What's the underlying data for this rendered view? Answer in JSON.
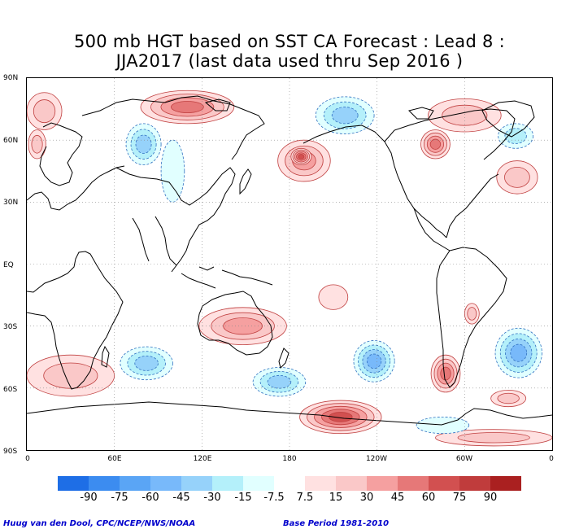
{
  "title_line1": "500 mb HGT based on SST CA Forecast : Lead 8 :",
  "title_line2": "JJA2017 (last data used thru Sep 2016 )",
  "lat_labels": [
    "90N",
    "60N",
    "30N",
    "EQ",
    "30S",
    "60S",
    "90S"
  ],
  "lon_labels": [
    "0",
    "60E",
    "120E",
    "180",
    "120W",
    "60W",
    "0"
  ],
  "colorbar": {
    "levels": [
      -90,
      -75,
      -60,
      -45,
      -30,
      -15,
      -7.5,
      7.5,
      15,
      30,
      45,
      60,
      75,
      90
    ],
    "labels": [
      "-90",
      "-75",
      "-60",
      "-45",
      "-30",
      "-15",
      "-7.5",
      "7.5",
      "15",
      "30",
      "45",
      "60",
      "75",
      "90"
    ],
    "negative_colors": [
      "#1e6ee6",
      "#3c8cf0",
      "#5aa5f5",
      "#78b9fa",
      "#96d2fa",
      "#b4f0fa",
      "#e1ffff"
    ],
    "positive_colors": [
      "#ffe1e1",
      "#fac8c8",
      "#f5a0a0",
      "#e67878",
      "#d25050",
      "#c03c3c",
      "#aa2020"
    ]
  },
  "footer_left": "Huug van den Dool, CPC/NCEP/NWS/NOAA",
  "footer_right": "Base Period 1981-2010",
  "anomaly_fields": [
    {
      "sign": "positive",
      "level": 4,
      "lon": 110,
      "lat": 76,
      "lon_radius": 32,
      "lat_radius": 8
    },
    {
      "sign": "positive",
      "level": 2,
      "lon": 12,
      "lat": 74,
      "lon_radius": 12,
      "lat_radius": 9
    },
    {
      "sign": "positive",
      "level": 2,
      "lon": 300,
      "lat": 72,
      "lon_radius": 25,
      "lat_radius": 8
    },
    {
      "sign": "positive",
      "level": 3,
      "lon": 190,
      "lat": 50,
      "lon_radius": 18,
      "lat_radius": 10
    },
    {
      "sign": "positive",
      "level": 5,
      "lon": 188,
      "lat": 52,
      "lon_radius": 7,
      "lat_radius": 4
    },
    {
      "sign": "positive",
      "level": 4,
      "lon": 280,
      "lat": 58,
      "lon_radius": 10,
      "lat_radius": 7
    },
    {
      "sign": "positive",
      "level": 2,
      "lon": 7,
      "lat": 58,
      "lon_radius": 6,
      "lat_radius": 7
    },
    {
      "sign": "positive",
      "level": 2,
      "lon": 336,
      "lat": 42,
      "lon_radius": 14,
      "lat_radius": 8
    },
    {
      "sign": "negative",
      "level": 3,
      "lon": 218,
      "lat": 72,
      "lon_radius": 20,
      "lat_radius": 9
    },
    {
      "sign": "negative",
      "level": 3,
      "lon": 80,
      "lat": 58,
      "lon_radius": 12,
      "lat_radius": 10
    },
    {
      "sign": "negative",
      "level": 1,
      "lon": 100,
      "lat": 45,
      "lon_radius": 8,
      "lat_radius": 15
    },
    {
      "sign": "negative",
      "level": 2,
      "lon": 335,
      "lat": 62,
      "lon_radius": 12,
      "lat_radius": 6
    },
    {
      "sign": "positive",
      "level": 3,
      "lon": 148,
      "lat": -30,
      "lon_radius": 30,
      "lat_radius": 9
    },
    {
      "sign": "positive",
      "level": 1,
      "lon": 210,
      "lat": -16,
      "lon_radius": 10,
      "lat_radius": 6
    },
    {
      "sign": "positive",
      "level": 2,
      "lon": 305,
      "lat": -24,
      "lon_radius": 5,
      "lat_radius": 5
    },
    {
      "sign": "negative",
      "level": 3,
      "lon": 82,
      "lat": -48,
      "lon_radius": 18,
      "lat_radius": 8
    },
    {
      "sign": "negative",
      "level": 3,
      "lon": 173,
      "lat": -57,
      "lon_radius": 18,
      "lat_radius": 7
    },
    {
      "sign": "negative",
      "level": 4,
      "lon": 238,
      "lat": -47,
      "lon_radius": 14,
      "lat_radius": 10
    },
    {
      "sign": "negative",
      "level": 4,
      "lon": 337,
      "lat": -43,
      "lon_radius": 16,
      "lat_radius": 12
    },
    {
      "sign": "positive",
      "level": 4,
      "lon": 287,
      "lat": -53,
      "lon_radius": 10,
      "lat_radius": 9
    },
    {
      "sign": "positive",
      "level": 2,
      "lon": 30,
      "lat": -54,
      "lon_radius": 30,
      "lat_radius": 10
    },
    {
      "sign": "positive",
      "level": 5,
      "lon": 215,
      "lat": -74,
      "lon_radius": 28,
      "lat_radius": 8
    },
    {
      "sign": "positive",
      "level": 2,
      "lon": 330,
      "lat": -65,
      "lon_radius": 12,
      "lat_radius": 4
    },
    {
      "sign": "positive",
      "level": 2,
      "lon": 320,
      "lat": -84,
      "lon_radius": 40,
      "lat_radius": 4
    },
    {
      "sign": "negative",
      "level": 1,
      "lon": 285,
      "lat": -78,
      "lon_radius": 18,
      "lat_radius": 4
    }
  ]
}
